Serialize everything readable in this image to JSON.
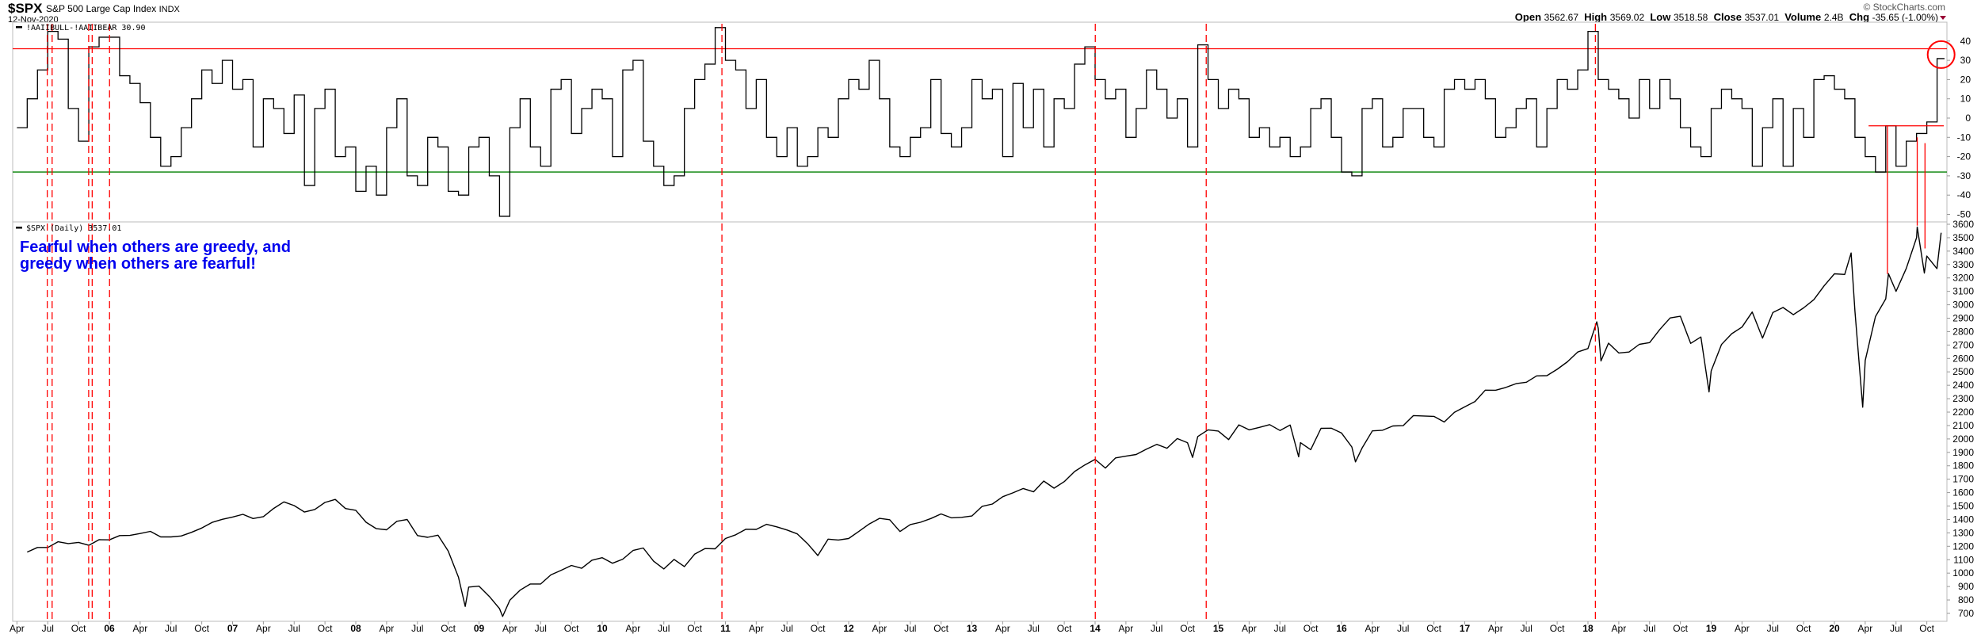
{
  "header": {
    "symbol": "$SPX",
    "name": "S&P 500 Large Cap Index",
    "exchange": "INDX",
    "date": "12-Nov-2020",
    "copyright": "© StockCharts.com",
    "quote": [
      {
        "label": "Open",
        "value": "3562.67"
      },
      {
        "label": "High",
        "value": "3569.02"
      },
      {
        "label": "Low",
        "value": "3518.58"
      },
      {
        "label": "Close",
        "value": "3537.01"
      },
      {
        "label": "Volume",
        "value": "2.4B"
      },
      {
        "label": "Chg",
        "value": "-35.65 (-1.00%)"
      }
    ],
    "change_direction": "down",
    "down_color": "#990033"
  },
  "annotation_text": {
    "line1": "Fearful when others are greedy, and",
    "line2": "greedy when others are fearful!",
    "color": "#0000ee"
  },
  "chart_data": [
    {
      "type": "line",
      "panel": "upper",
      "legend": "!AAIIBULL-!AAIIBEAR 30.90",
      "y_ticks": [
        "40",
        "30",
        "20",
        "10",
        "0",
        "-10",
        "-20",
        "-30",
        "-40",
        "-50"
      ],
      "ylim": [
        -55,
        48
      ],
      "line_style": "step",
      "reference_lines": [
        {
          "value": 36,
          "color": "#ff0000"
        },
        {
          "value": -28,
          "color": "#008000"
        }
      ],
      "series": [
        {
          "values": {
            "2005-04": -5,
            "2005-05": 10,
            "2005-06": 25,
            "2005-07": 45,
            "2005-08": 41,
            "2005-09": 5,
            "2005-10": -12,
            "2005-11": 37,
            "2005-12": 42,
            "2006-01": 42,
            "2006-02": 22,
            "2006-03": 18,
            "2006-04": 8,
            "2006-05": -10,
            "2006-06": -25,
            "2006-07": -20,
            "2006-08": -5,
            "2006-09": 10,
            "2006-10": 25,
            "2006-11": 18,
            "2006-12": 30,
            "2007-01": 15,
            "2007-02": 20,
            "2007-03": -15,
            "2007-04": 10,
            "2007-05": 5,
            "2007-06": -8,
            "2007-07": 12,
            "2007-08": -35,
            "2007-09": 5,
            "2007-10": 15,
            "2007-11": -20,
            "2007-12": -15,
            "2008-01": -38,
            "2008-02": -25,
            "2008-03": -40,
            "2008-04": -5,
            "2008-05": 10,
            "2008-06": -30,
            "2008-07": -35,
            "2008-08": -10,
            "2008-09": -15,
            "2008-10": -38,
            "2008-11": -40,
            "2008-12": -15,
            "2009-01": -10,
            "2009-02": -30,
            "2009-03": -51,
            "2009-04": -5,
            "2009-05": 10,
            "2009-06": -15,
            "2009-07": -25,
            "2009-08": 15,
            "2009-09": 20,
            "2009-10": -8,
            "2009-11": 5,
            "2009-12": 15,
            "2010-01": 10,
            "2010-02": -20,
            "2010-03": 25,
            "2010-04": 30,
            "2010-05": -12,
            "2010-06": -25,
            "2010-07": -35,
            "2010-08": -30,
            "2010-09": 5,
            "2010-10": 20,
            "2010-11": 28,
            "2010-12": 47,
            "2011-01": 30,
            "2011-02": 25,
            "2011-03": 5,
            "2011-04": 20,
            "2011-05": -10,
            "2011-06": -20,
            "2011-07": -5,
            "2011-08": -25,
            "2011-09": -20,
            "2011-10": -5,
            "2011-11": -10,
            "2011-12": 10,
            "2012-01": 20,
            "2012-02": 15,
            "2012-03": 30,
            "2012-04": 10,
            "2012-05": -15,
            "2012-06": -20,
            "2012-07": -10,
            "2012-08": -5,
            "2012-09": 20,
            "2012-10": -8,
            "2012-11": -15,
            "2012-12": -5,
            "2013-01": 20,
            "2013-02": 10,
            "2013-03": 15,
            "2013-04": -20,
            "2013-05": 18,
            "2013-06": -5,
            "2013-07": 15,
            "2013-08": -15,
            "2013-09": 10,
            "2013-10": 5,
            "2013-11": 28,
            "2013-12": 37,
            "2014-01": 20,
            "2014-02": 10,
            "2014-03": 15,
            "2014-04": -10,
            "2014-05": 5,
            "2014-06": 25,
            "2014-07": 15,
            "2014-08": 0,
            "2014-09": 10,
            "2014-10": -15,
            "2014-11": 38,
            "2014-12": 20,
            "2015-01": 5,
            "2015-02": 15,
            "2015-03": 10,
            "2015-04": -10,
            "2015-05": -5,
            "2015-06": -15,
            "2015-07": -10,
            "2015-08": -20,
            "2015-09": -15,
            "2015-10": 5,
            "2015-11": 10,
            "2015-12": -10,
            "2016-01": -28,
            "2016-02": -30,
            "2016-03": 5,
            "2016-04": 10,
            "2016-05": -15,
            "2016-06": -10,
            "2016-07": 5,
            "2016-08": 5,
            "2016-09": -10,
            "2016-10": -15,
            "2016-11": 15,
            "2016-12": 20,
            "2017-01": 15,
            "2017-02": 20,
            "2017-03": 10,
            "2017-04": -10,
            "2017-05": -5,
            "2017-06": 5,
            "2017-07": 10,
            "2017-08": -15,
            "2017-09": 5,
            "2017-10": 20,
            "2017-11": 15,
            "2017-12": 25,
            "2018-01": 45,
            "2018-02": 20,
            "2018-03": 15,
            "2018-04": 10,
            "2018-05": 0,
            "2018-06": 20,
            "2018-07": 5,
            "2018-08": 20,
            "2018-09": 10,
            "2018-10": -5,
            "2018-11": -15,
            "2018-12": -20,
            "2019-01": 5,
            "2019-02": 15,
            "2019-03": 10,
            "2019-04": 5,
            "2019-05": -25,
            "2019-06": -5,
            "2019-07": 10,
            "2019-08": -25,
            "2019-09": 5,
            "2019-10": -10,
            "2019-11": 20,
            "2019-12": 22,
            "2020-01": 15,
            "2020-02": 10,
            "2020-03": -10,
            "2020-04": -20,
            "2020-05": -28,
            "2020-06": -4,
            "2020-07": -25,
            "2020-08": -12,
            "2020-09": -8,
            "2020-10": -2,
            "2020-11": 30.9
          }
        }
      ],
      "highlight_circle": {
        "date": "2020-11-12",
        "value": 30.9,
        "color": "#ff0000"
      }
    },
    {
      "type": "line",
      "panel": "lower",
      "legend": "$SPX (Daily) 3537.01",
      "y_ticks": [
        "3600",
        "3500",
        "3400",
        "3300",
        "3200",
        "3100",
        "3000",
        "2900",
        "2800",
        "2700",
        "2600",
        "2500",
        "2400",
        "2300",
        "2200",
        "2100",
        "2000",
        "1900",
        "1800",
        "1700",
        "1600",
        "1500",
        "1400",
        "1300",
        "1200",
        "1100",
        "1000",
        "900",
        "800",
        "700"
      ],
      "ylim": [
        640,
        3620
      ],
      "x_tick_labels": [
        "Apr",
        "Jul",
        "Oct",
        "06",
        "Apr",
        "Jul",
        "Oct",
        "07",
        "Apr",
        "Jul",
        "Oct",
        "08",
        "Apr",
        "Jul",
        "Oct",
        "09",
        "Apr",
        "Jul",
        "Oct",
        "10",
        "Apr",
        "Jul",
        "Oct",
        "11",
        "Apr",
        "Jul",
        "Oct",
        "12",
        "Apr",
        "Jul",
        "Oct",
        "13",
        "Apr",
        "Jul",
        "Oct",
        "14",
        "Apr",
        "Jul",
        "Oct",
        "15",
        "Apr",
        "Jul",
        "Oct",
        "16",
        "Apr",
        "Jul",
        "Oct",
        "17",
        "Apr",
        "Jul",
        "Oct",
        "18",
        "Apr",
        "Jul",
        "Oct",
        "19",
        "Apr",
        "Jul",
        "Oct",
        "20",
        "Apr",
        "Jul",
        "Oct"
      ],
      "series": [
        {
          "values": {
            "2005-04": 1157,
            "2005-05": 1191,
            "2005-06": 1191,
            "2005-07": 1234,
            "2005-08": 1220,
            "2005-09": 1229,
            "2005-10": 1207,
            "2005-11": 1249,
            "2005-12": 1248,
            "2006-01": 1280,
            "2006-02": 1281,
            "2006-03": 1295,
            "2006-04": 1311,
            "2006-05": 1270,
            "2006-06": 1270,
            "2006-07": 1277,
            "2006-08": 1304,
            "2006-09": 1336,
            "2006-10": 1378,
            "2006-11": 1401,
            "2006-12": 1418,
            "2007-01": 1438,
            "2007-02": 1407,
            "2007-03": 1421,
            "2007-04": 1482,
            "2007-05": 1531,
            "2007-06": 1503,
            "2007-07": 1455,
            "2007-08": 1474,
            "2007-09": 1527,
            "2007-10": 1549,
            "2007-11": 1481,
            "2007-12": 1468,
            "2008-01": 1379,
            "2008-02": 1331,
            "2008-03": 1323,
            "2008-04": 1386,
            "2008-05": 1400,
            "2008-06": 1280,
            "2008-07": 1267,
            "2008-08": 1283,
            "2008-09": 1165,
            "2008-10": 969,
            "2008-11-20": 752,
            "2008-11": 896,
            "2008-12": 903,
            "2009-01": 826,
            "2009-02": 735,
            "2009-03-09": 677,
            "2009-03": 798,
            "2009-04": 873,
            "2009-05": 919,
            "2009-06": 919,
            "2009-07": 987,
            "2009-08": 1021,
            "2009-09": 1057,
            "2009-10": 1036,
            "2009-11": 1096,
            "2009-12": 1115,
            "2010-01": 1074,
            "2010-02": 1104,
            "2010-03": 1169,
            "2010-04": 1187,
            "2010-05": 1089,
            "2010-06": 1031,
            "2010-07": 1102,
            "2010-08": 1049,
            "2010-09": 1141,
            "2010-10": 1183,
            "2010-11": 1181,
            "2010-12": 1258,
            "2011-01": 1286,
            "2011-02": 1327,
            "2011-03": 1326,
            "2011-04": 1364,
            "2011-05": 1345,
            "2011-06": 1321,
            "2011-07": 1292,
            "2011-08": 1219,
            "2011-09": 1131,
            "2011-10": 1253,
            "2011-11": 1247,
            "2011-12": 1258,
            "2012-01": 1312,
            "2012-02": 1366,
            "2012-03": 1408,
            "2012-04": 1398,
            "2012-05": 1310,
            "2012-06": 1362,
            "2012-07": 1379,
            "2012-08": 1407,
            "2012-09": 1441,
            "2012-10": 1412,
            "2012-11": 1416,
            "2012-12": 1426,
            "2013-01": 1498,
            "2013-02": 1515,
            "2013-03": 1569,
            "2013-04": 1598,
            "2013-05": 1631,
            "2013-06": 1606,
            "2013-07": 1686,
            "2013-08": 1633,
            "2013-09": 1682,
            "2013-10": 1757,
            "2013-11": 1806,
            "2013-12": 1848,
            "2014-01": 1783,
            "2014-02": 1859,
            "2014-03": 1872,
            "2014-04": 1884,
            "2014-05": 1924,
            "2014-06": 1960,
            "2014-07": 1931,
            "2014-08": 2003,
            "2014-09": 1972,
            "2014-10-15": 1862,
            "2014-10": 2018,
            "2014-11": 2068,
            "2014-12": 2059,
            "2015-01": 1995,
            "2015-02": 2105,
            "2015-03": 2068,
            "2015-04": 2086,
            "2015-05": 2107,
            "2015-06": 2063,
            "2015-07": 2104,
            "2015-08-25": 1867,
            "2015-08": 1972,
            "2015-09": 1920,
            "2015-10": 2079,
            "2015-11": 2080,
            "2015-12": 2044,
            "2016-01": 1940,
            "2016-02-11": 1829,
            "2016-02": 1932,
            "2016-03": 2060,
            "2016-04": 2065,
            "2016-05": 2097,
            "2016-06": 2099,
            "2016-07": 2174,
            "2016-08": 2171,
            "2016-09": 2168,
            "2016-10": 2126,
            "2016-11": 2199,
            "2016-12": 2239,
            "2017-01": 2279,
            "2017-02": 2364,
            "2017-03": 2363,
            "2017-04": 2384,
            "2017-05": 2412,
            "2017-06": 2423,
            "2017-07": 2470,
            "2017-08": 2472,
            "2017-09": 2519,
            "2017-10": 2575,
            "2017-11": 2648,
            "2017-12": 2674,
            "2018-01-26": 2873,
            "2018-01": 2824,
            "2018-02-08": 2581,
            "2018-02": 2714,
            "2018-03": 2641,
            "2018-04": 2648,
            "2018-05": 2705,
            "2018-06": 2718,
            "2018-07": 2816,
            "2018-08": 2902,
            "2018-09": 2914,
            "2018-10": 2712,
            "2018-11": 2760,
            "2018-12-24": 2351,
            "2018-12": 2507,
            "2019-01": 2704,
            "2019-02": 2784,
            "2019-03": 2834,
            "2019-04": 2946,
            "2019-05": 2752,
            "2019-06": 2942,
            "2019-07": 2980,
            "2019-08": 2926,
            "2019-09": 2977,
            "2019-10": 3038,
            "2019-11": 3141,
            "2019-12": 3231,
            "2020-01": 3226,
            "2020-02-19": 3386,
            "2020-02": 2954,
            "2020-03-23": 2237,
            "2020-03": 2585,
            "2020-04": 2912,
            "2020-05": 3044,
            "2020-06-08": 3232,
            "2020-06": 3100,
            "2020-07": 3271,
            "2020-08": 3500,
            "2020-09-02": 3580,
            "2020-09-23": 3237,
            "2020-09": 3363,
            "2020-10-30": 3270,
            "2020-11-12": 3537
          }
        }
      ]
    }
  ],
  "markers": {
    "dashed_lines": {
      "color": "#ff0000",
      "dates": [
        "2005-06-29",
        "2005-07-13",
        "2005-10-30",
        "2005-11-10",
        "2005-12-31",
        "2010-12-20",
        "2013-12-31",
        "2014-11-25",
        "2018-01-22"
      ]
    },
    "solid_lines": {
      "color": "#ff0000",
      "lines": [
        {
          "date": "2020-06-05",
          "sentiment": -4,
          "spx": 3230
        },
        {
          "date": "2020-09-02",
          "sentiment": -10,
          "spx": 3590
        },
        {
          "date": "2020-09-25",
          "sentiment": -13,
          "spx": 3420
        }
      ],
      "horizontal": {
        "value": -4,
        "from": "2020-04-10",
        "to": "2020-11-20"
      }
    }
  }
}
